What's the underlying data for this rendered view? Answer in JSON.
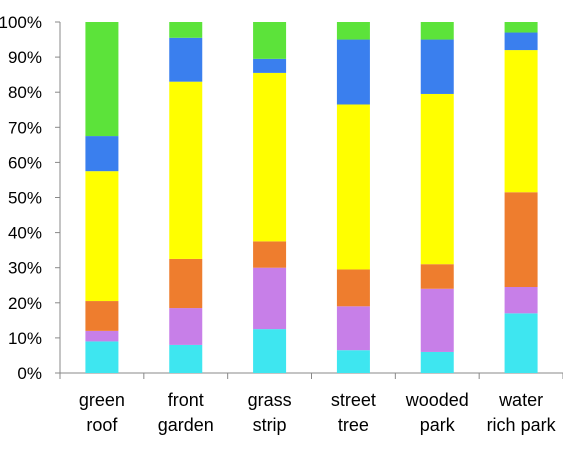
{
  "chart_data": {
    "type": "bar",
    "stacked": true,
    "categories": [
      [
        "green",
        "roof"
      ],
      [
        "front",
        "garden"
      ],
      [
        "grass",
        "strip"
      ],
      [
        "street",
        "tree"
      ],
      [
        "wooded",
        "park"
      ],
      [
        "water",
        "rich park"
      ]
    ],
    "ylim": [
      0,
      100
    ],
    "yticks": [
      "0%",
      "10%",
      "20%",
      "30%",
      "40%",
      "50%",
      "60%",
      "70%",
      "80%",
      "90%",
      "100%"
    ],
    "grid": false,
    "legend": "none",
    "series": [
      {
        "color": "#3EE6F0",
        "values": [
          9,
          8,
          12.5,
          6.5,
          6,
          17
        ]
      },
      {
        "color": "#C77FE8",
        "values": [
          3,
          10.5,
          17.5,
          12.5,
          18,
          7.5
        ]
      },
      {
        "color": "#EE7D2E",
        "values": [
          8.5,
          14,
          7.5,
          10.5,
          7,
          27
        ]
      },
      {
        "color": "#FFFF00",
        "values": [
          37,
          50.5,
          48,
          47,
          48.5,
          40.5
        ]
      },
      {
        "color": "#3A7FEE",
        "values": [
          10,
          12.5,
          4,
          18.5,
          15.5,
          5
        ]
      },
      {
        "color": "#5CE33A",
        "values": [
          32.5,
          4.5,
          10.5,
          5,
          5,
          3
        ]
      }
    ]
  }
}
